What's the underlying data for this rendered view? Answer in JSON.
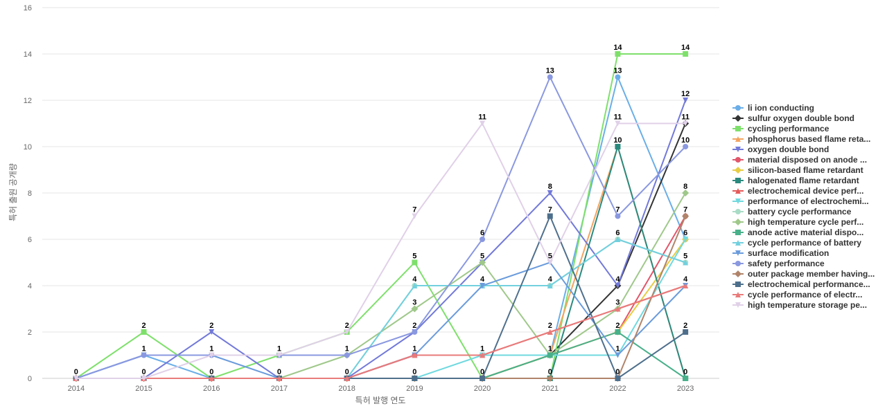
{
  "chart_data": {
    "type": "line",
    "title": "",
    "xlabel": "특허 발행 연도",
    "ylabel": "특허 출원 공개량",
    "categories": [
      "2014",
      "2015",
      "2016",
      "2017",
      "2018",
      "2019",
      "2020",
      "2021",
      "2022",
      "2023"
    ],
    "ylim": [
      0,
      16
    ],
    "yticks": [
      0,
      2,
      4,
      6,
      8,
      10,
      12,
      14,
      16
    ],
    "grid": true,
    "legend": "right",
    "series": [
      {
        "name": "li ion conducting",
        "color": "#6aaee8",
        "marker": "circle",
        "values": [
          0,
          1,
          0,
          0,
          0,
          1,
          1,
          1,
          13,
          6
        ]
      },
      {
        "name": "sulfur oxygen double bond",
        "color": "#333333",
        "marker": "diamond",
        "values": [
          0,
          0,
          0,
          0,
          0,
          0,
          0,
          1,
          4,
          11
        ]
      },
      {
        "name": "cycling performance",
        "color": "#7ee06b",
        "marker": "square",
        "values": [
          0,
          2,
          0,
          1,
          2,
          5,
          0,
          0,
          14,
          14
        ]
      },
      {
        "name": "phosphorus based flame reta...",
        "color": "#f4a460",
        "marker": "triangle",
        "values": [
          0,
          0,
          0,
          0,
          0,
          0,
          0,
          1,
          10,
          0
        ]
      },
      {
        "name": "oxygen double bond",
        "color": "#7279d9",
        "marker": "triangle-down",
        "values": [
          0,
          0,
          2,
          0,
          0,
          2,
          5,
          8,
          4,
          12
        ]
      },
      {
        "name": "material disposed on anode ...",
        "color": "#e2566b",
        "marker": "circle",
        "values": [
          0,
          0,
          0,
          0,
          0,
          1,
          1,
          1,
          2,
          7
        ]
      },
      {
        "name": "silicon-based flame retardant",
        "color": "#e7cd45",
        "marker": "diamond",
        "values": [
          0,
          0,
          0,
          0,
          0,
          0,
          0,
          1,
          2,
          6
        ]
      },
      {
        "name": "halogenated flame retardant",
        "color": "#2a8a7e",
        "marker": "square",
        "values": [
          0,
          0,
          0,
          0,
          0,
          0,
          0,
          0,
          10,
          0
        ]
      },
      {
        "name": "electrochemical device perf...",
        "color": "#e55a5a",
        "marker": "triangle",
        "values": [
          0,
          0,
          0,
          0,
          0,
          1,
          1,
          2,
          3,
          4
        ]
      },
      {
        "name": "performance of electrochemi...",
        "color": "#6fd9df",
        "marker": "triangle-down",
        "values": [
          0,
          0,
          0,
          0,
          0,
          0,
          1,
          1,
          1,
          6
        ]
      },
      {
        "name": "battery cycle performance",
        "color": "#a9dcc7",
        "marker": "circle",
        "values": [
          0,
          0,
          0,
          0,
          0,
          4,
          4,
          4,
          6,
          5
        ]
      },
      {
        "name": "high temperature cycle perf...",
        "color": "#9fc88a",
        "marker": "diamond",
        "values": [
          0,
          0,
          0,
          0,
          1,
          3,
          5,
          1,
          3,
          8
        ]
      },
      {
        "name": "anode active material dispo...",
        "color": "#48b08a",
        "marker": "square",
        "values": [
          0,
          0,
          0,
          0,
          0,
          0,
          0,
          1,
          2,
          0
        ]
      },
      {
        "name": "cycle performance of battery",
        "color": "#72d0de",
        "marker": "triangle",
        "values": [
          0,
          0,
          0,
          0,
          0,
          4,
          4,
          4,
          6,
          5
        ]
      },
      {
        "name": "surface modification",
        "color": "#6a9bdc",
        "marker": "triangle-down",
        "values": [
          0,
          1,
          1,
          0,
          0,
          1,
          4,
          5,
          1,
          4
        ]
      },
      {
        "name": "safety performance",
        "color": "#8a98e0",
        "marker": "circle",
        "values": [
          0,
          1,
          1,
          1,
          1,
          2,
          6,
          13,
          7,
          10
        ]
      },
      {
        "name": "outer package member having...",
        "color": "#b0846a",
        "marker": "diamond",
        "values": [
          0,
          0,
          0,
          0,
          0,
          0,
          0,
          0,
          0,
          7
        ]
      },
      {
        "name": "electrochemical performance...",
        "color": "#4e6f8c",
        "marker": "square",
        "values": [
          0,
          0,
          0,
          0,
          0,
          0,
          0,
          7,
          0,
          2
        ]
      },
      {
        "name": "cycle performance of electr...",
        "color": "#e97a7a",
        "marker": "triangle",
        "values": [
          0,
          0,
          0,
          0,
          0,
          1,
          1,
          2,
          3,
          4
        ]
      },
      {
        "name": "high temperature storage pe...",
        "color": "#e0d0e8",
        "marker": "triangle-down",
        "values": [
          0,
          0,
          1,
          1,
          2,
          7,
          11,
          5,
          11,
          11
        ]
      }
    ],
    "annotations": [
      {
        "category": "2014",
        "value": 0,
        "label": "0"
      },
      {
        "category": "2015",
        "value": 2,
        "label": "2"
      },
      {
        "category": "2015",
        "value": 1,
        "label": "1"
      },
      {
        "category": "2015",
        "value": 0,
        "label": "0"
      },
      {
        "category": "2016",
        "value": 2,
        "label": "2"
      },
      {
        "category": "2016",
        "value": 1,
        "label": "1"
      },
      {
        "category": "2016",
        "value": 0,
        "label": "0"
      },
      {
        "category": "2017",
        "value": 1,
        "label": "1"
      },
      {
        "category": "2017",
        "value": 0,
        "label": "0"
      },
      {
        "category": "2018",
        "value": 2,
        "label": "2"
      },
      {
        "category": "2018",
        "value": 1,
        "label": "1"
      },
      {
        "category": "2018",
        "value": 0,
        "label": "0"
      },
      {
        "category": "2019",
        "value": 7,
        "label": "7"
      },
      {
        "category": "2019",
        "value": 5,
        "label": "5"
      },
      {
        "category": "2019",
        "value": 4,
        "label": "4"
      },
      {
        "category": "2019",
        "value": 3,
        "label": "3"
      },
      {
        "category": "2019",
        "value": 2,
        "label": "2"
      },
      {
        "category": "2019",
        "value": 1,
        "label": "1"
      },
      {
        "category": "2019",
        "value": 0,
        "label": "0"
      },
      {
        "category": "2020",
        "value": 11,
        "label": "11"
      },
      {
        "category": "2020",
        "value": 6,
        "label": "6"
      },
      {
        "category": "2020",
        "value": 5,
        "label": "5"
      },
      {
        "category": "2020",
        "value": 4,
        "label": "4"
      },
      {
        "category": "2020",
        "value": 1,
        "label": "1"
      },
      {
        "category": "2020",
        "value": 0,
        "label": "0"
      },
      {
        "category": "2021",
        "value": 13,
        "label": "13"
      },
      {
        "category": "2021",
        "value": 8,
        "label": "8"
      },
      {
        "category": "2021",
        "value": 7,
        "label": "7"
      },
      {
        "category": "2021",
        "value": 5,
        "label": "5"
      },
      {
        "category": "2021",
        "value": 4,
        "label": "4"
      },
      {
        "category": "2021",
        "value": 2,
        "label": "2"
      },
      {
        "category": "2021",
        "value": 1,
        "label": "1"
      },
      {
        "category": "2021",
        "value": 0,
        "label": "0"
      },
      {
        "category": "2022",
        "value": 14,
        "label": "14"
      },
      {
        "category": "2022",
        "value": 13,
        "label": "13"
      },
      {
        "category": "2022",
        "value": 11,
        "label": "11"
      },
      {
        "category": "2022",
        "value": 10,
        "label": "10"
      },
      {
        "category": "2022",
        "value": 7,
        "label": "7"
      },
      {
        "category": "2022",
        "value": 6,
        "label": "6"
      },
      {
        "category": "2022",
        "value": 4,
        "label": "4"
      },
      {
        "category": "2022",
        "value": 3,
        "label": "3"
      },
      {
        "category": "2022",
        "value": 2,
        "label": "2"
      },
      {
        "category": "2022",
        "value": 1,
        "label": "1"
      },
      {
        "category": "2022",
        "value": 0,
        "label": "0"
      },
      {
        "category": "2023",
        "value": 14,
        "label": "14"
      },
      {
        "category": "2023",
        "value": 12,
        "label": "12"
      },
      {
        "category": "2023",
        "value": 11,
        "label": "11"
      },
      {
        "category": "2023",
        "value": 10,
        "label": "10"
      },
      {
        "category": "2023",
        "value": 8,
        "label": "8"
      },
      {
        "category": "2023",
        "value": 7,
        "label": "7"
      },
      {
        "category": "2023",
        "value": 6,
        "label": "6"
      },
      {
        "category": "2023",
        "value": 5,
        "label": "5"
      },
      {
        "category": "2023",
        "value": 4,
        "label": "4"
      },
      {
        "category": "2023",
        "value": 2,
        "label": "2"
      },
      {
        "category": "2023",
        "value": 0,
        "label": "0"
      }
    ]
  }
}
